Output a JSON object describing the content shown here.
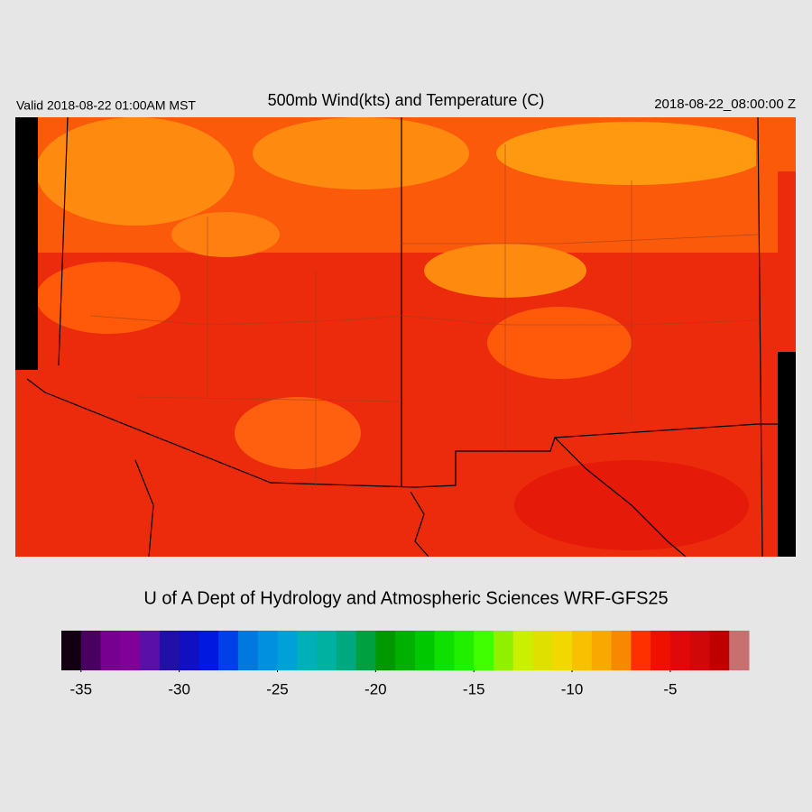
{
  "header": {
    "valid": "Valid 2018-08-22 01:00AM MST",
    "title": "500mb Wind(kts) and Temperature (C)",
    "time": "2018-08-22_08:00:00 Z"
  },
  "credit": "U of A Dept of Hydrology and Atmospheric Sciences WRF-GFS25",
  "colorbar": {
    "range": [
      -36,
      -1
    ],
    "ticks": [
      -35,
      -30,
      -25,
      -20,
      -15,
      -10,
      -5
    ],
    "colors": [
      "#120012",
      "#4a0060",
      "#780090",
      "#82009a",
      "#5a10a8",
      "#2010a8",
      "#1010c0",
      "#0018e0",
      "#0040e8",
      "#0078e0",
      "#0090e0",
      "#00a0d8",
      "#00b0b8",
      "#00b0a0",
      "#00a880",
      "#00a040",
      "#009800",
      "#00b000",
      "#00c800",
      "#10e000",
      "#20f000",
      "#40ff00",
      "#90f000",
      "#c8f000",
      "#e0e000",
      "#f0d800",
      "#f8c000",
      "#f8a800",
      "#f88800",
      "#ff3000",
      "#f01000",
      "#e00808",
      "#d00808",
      "#c00000",
      "#c87070"
    ]
  }
}
